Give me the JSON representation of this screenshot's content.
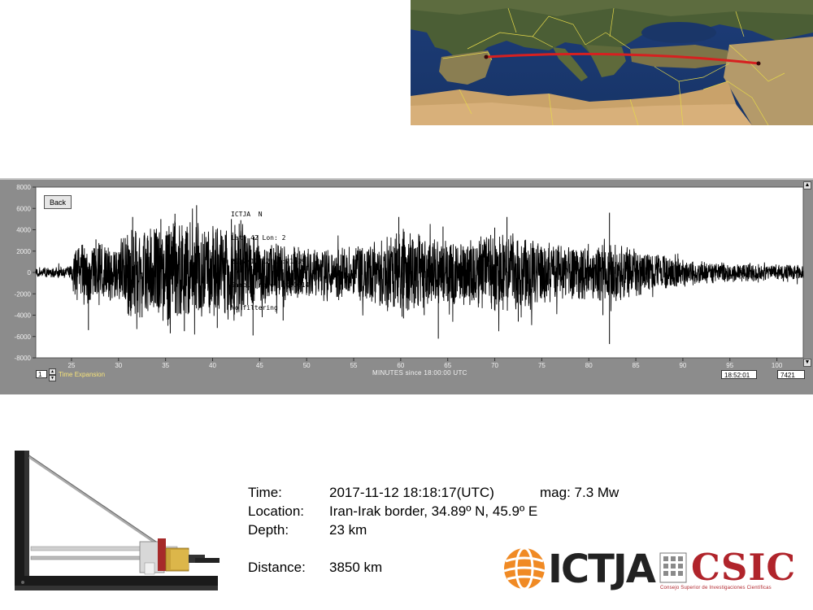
{
  "map": {
    "path_color": "#d62020"
  },
  "seismogram": {
    "back_label": "Back",
    "info_lines": [
      "ICTJA  N",
      "Lat: 42 Lon: 2",
      "2017/11/12 18:21:09",
      "Sample rate: 20.0014",
      "No filtering"
    ],
    "expansion_value": "1",
    "expansion_label": "Time Expansion",
    "time_box": "18:52:01",
    "count_box": "7421",
    "scroll_up_icon": "scroll-up-arrow-icon",
    "scroll_down_icon": "scroll-down-arrow-icon"
  },
  "chart_data": {
    "type": "line",
    "xlabel": "MINUTES since 18:00:00 UTC",
    "ylabel": "",
    "title": "",
    "xlim": [
      21.2,
      102.8
    ],
    "ylim": [
      -8000,
      8000
    ],
    "x_ticks": [
      25,
      30,
      35,
      40,
      45,
      50,
      55,
      60,
      65,
      70,
      75,
      80,
      85,
      90,
      95,
      100
    ],
    "y_ticks": [
      8000,
      6000,
      4000,
      2000,
      0,
      -2000,
      -4000,
      -6000,
      -8000
    ],
    "grid": false,
    "series": [
      {
        "line_color": "#000000",
        "x_start": 21.2,
        "x_end": 102.8,
        "envelope": [
          {
            "x": 21.2,
            "amp": 500
          },
          {
            "x": 25.0,
            "amp": 600
          },
          {
            "x": 25.3,
            "amp": 2600
          },
          {
            "x": 27,
            "amp": 3000
          },
          {
            "x": 30,
            "amp": 2400
          },
          {
            "x": 31,
            "amp": 4200
          },
          {
            "x": 34,
            "amp": 4400
          },
          {
            "x": 36,
            "amp": 5000
          },
          {
            "x": 38,
            "amp": 4700
          },
          {
            "x": 40,
            "amp": 4300
          },
          {
            "x": 43,
            "amp": 4800
          },
          {
            "x": 45,
            "amp": 3000
          },
          {
            "x": 48,
            "amp": 2600
          },
          {
            "x": 52,
            "amp": 2200
          },
          {
            "x": 55,
            "amp": 2600
          },
          {
            "x": 58,
            "amp": 3400
          },
          {
            "x": 60,
            "amp": 4200
          },
          {
            "x": 63,
            "amp": 3300
          },
          {
            "x": 66,
            "amp": 3000
          },
          {
            "x": 70,
            "amp": 3600
          },
          {
            "x": 72,
            "amp": 4000
          },
          {
            "x": 74,
            "amp": 3200
          },
          {
            "x": 77,
            "amp": 2700
          },
          {
            "x": 80,
            "amp": 2600
          },
          {
            "x": 83,
            "amp": 2700
          },
          {
            "x": 86,
            "amp": 2000
          },
          {
            "x": 90,
            "amp": 1200
          },
          {
            "x": 95,
            "amp": 900
          },
          {
            "x": 102.8,
            "amp": 700
          }
        ],
        "peaks": [
          {
            "x": 26.8,
            "y": -5400
          },
          {
            "x": 27.6,
            "y": 3100
          },
          {
            "x": 31.5,
            "y": 5200
          },
          {
            "x": 32.5,
            "y": -4200
          },
          {
            "x": 34.5,
            "y": 5000
          },
          {
            "x": 35.5,
            "y": -5700
          },
          {
            "x": 36.0,
            "y": 5500
          },
          {
            "x": 37.0,
            "y": -5500
          },
          {
            "x": 38.3,
            "y": 6300
          },
          {
            "x": 40.5,
            "y": -5200
          },
          {
            "x": 42.0,
            "y": 5000
          },
          {
            "x": 43.0,
            "y": 4900
          },
          {
            "x": 44.3,
            "y": -5900
          },
          {
            "x": 44.8,
            "y": 3500
          },
          {
            "x": 47.5,
            "y": -4500
          },
          {
            "x": 59.8,
            "y": 5200
          },
          {
            "x": 60.3,
            "y": -4300
          },
          {
            "x": 62.5,
            "y": -4000
          },
          {
            "x": 64.0,
            "y": -6200
          },
          {
            "x": 64.5,
            "y": 4300
          },
          {
            "x": 70.0,
            "y": 4200
          },
          {
            "x": 71.3,
            "y": 5200
          },
          {
            "x": 72.5,
            "y": -4600
          },
          {
            "x": 81.5,
            "y": -4000
          },
          {
            "x": 82.2,
            "y": 5600
          },
          {
            "x": 82.2,
            "y": -6700
          }
        ]
      }
    ]
  },
  "event": {
    "time_label": "Time:",
    "time_value": "2017-11-12 18:18:17(UTC)",
    "mag_text": "mag: 7.3 Mw",
    "location_label": "Location:",
    "location_value": "Iran-Irak border, 34.89º N, 45.9º E",
    "depth_label": "Depth:",
    "depth_value": "23 km",
    "distance_label": "Distance:",
    "distance_value": "3850 km"
  },
  "logos": {
    "ictja": "ICTJA",
    "csic": "CSIC",
    "csic_subtitle": "Consejo Superior de Investigaciones Científicas",
    "ictja_color": "#f08a24",
    "csic_color": "#b0242b"
  }
}
